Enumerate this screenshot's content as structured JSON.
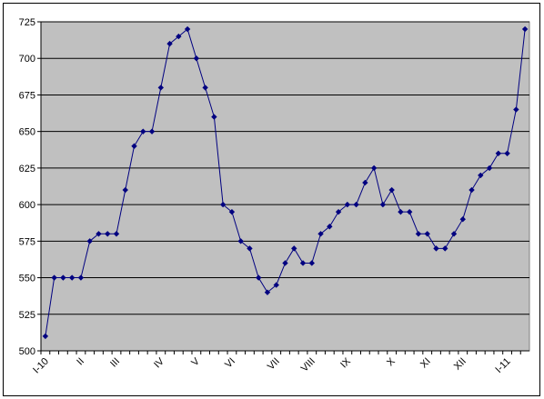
{
  "chart_data": {
    "type": "line",
    "categories": [
      "I-10",
      null,
      null,
      null,
      "II",
      null,
      null,
      null,
      "III",
      null,
      null,
      null,
      null,
      "IV",
      null,
      null,
      null,
      "V",
      null,
      null,
      null,
      "VI",
      null,
      null,
      null,
      null,
      "VII",
      null,
      null,
      null,
      "VIII",
      null,
      null,
      null,
      "IX",
      null,
      null,
      null,
      null,
      "X",
      null,
      null,
      null,
      "XI",
      null,
      null,
      null,
      "XII",
      null,
      null,
      null,
      null,
      "I-11",
      null,
      null
    ],
    "series": [
      {
        "color": "#000080",
        "values": [
          510,
          550,
          550,
          550,
          550,
          575,
          580,
          580,
          580,
          610,
          640,
          650,
          650,
          680,
          710,
          715,
          720,
          700,
          680,
          660,
          600,
          595,
          575,
          570,
          550,
          540,
          545,
          560,
          570,
          560,
          560,
          580,
          585,
          595,
          600,
          600,
          615,
          625,
          600,
          610,
          595,
          595,
          580,
          580,
          570,
          570,
          580,
          590,
          610,
          620,
          625,
          635,
          635,
          665,
          720
        ]
      }
    ],
    "ylim": [
      500,
      725
    ],
    "yticks": [
      500,
      525,
      550,
      575,
      600,
      625,
      650,
      675,
      700,
      725
    ],
    "grid": true
  }
}
